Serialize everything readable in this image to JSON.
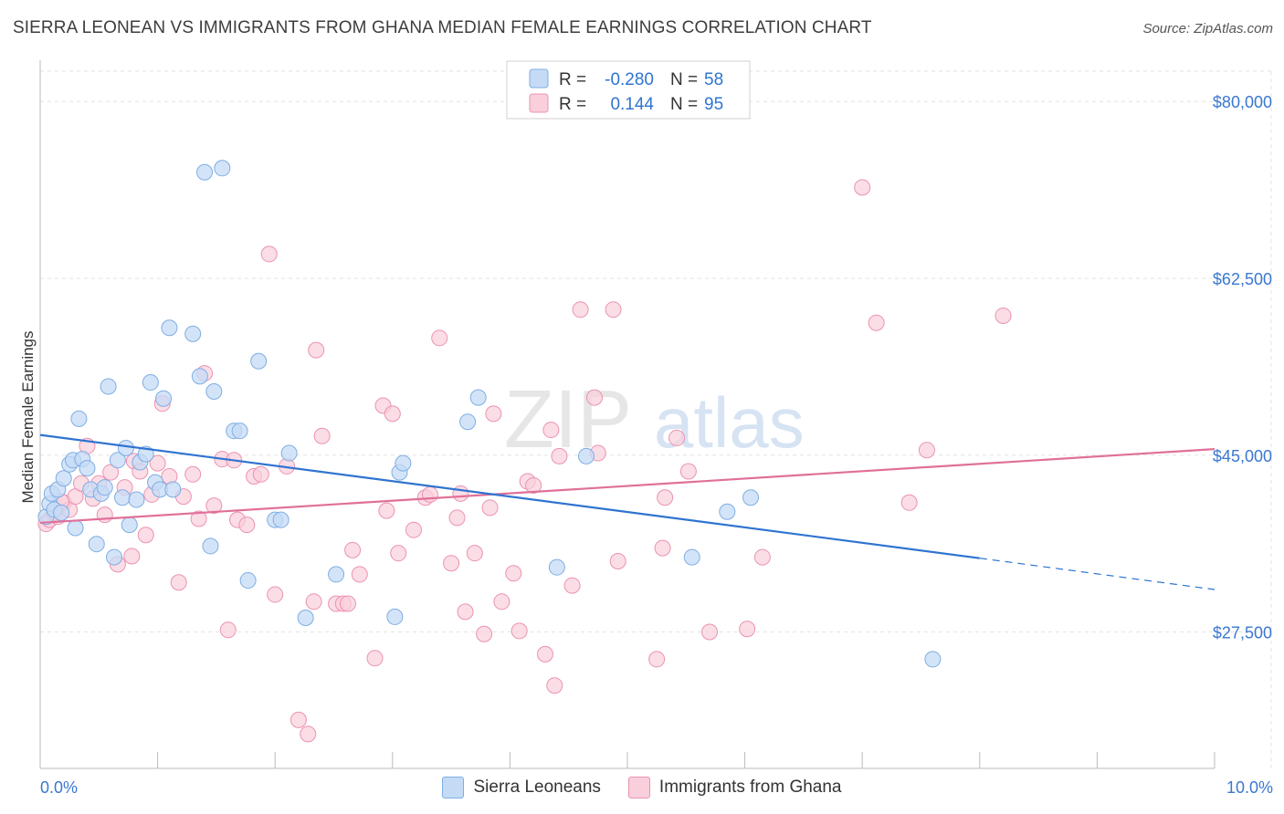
{
  "title": "SIERRA LEONEAN VS IMMIGRANTS FROM GHANA MEDIAN FEMALE EARNINGS CORRELATION CHART",
  "source": "Source: ZipAtlas.com",
  "colors": {
    "blue_fill": "#c5dbf5",
    "blue_stroke": "#7eaee3",
    "blue_line": "#2f74d0",
    "pink_fill": "#f9cfdc",
    "pink_stroke": "#eb93b0",
    "pink_line": "#e07099",
    "axis_label": "#3a78d0",
    "grid": "#e3e3e3"
  },
  "legend": {
    "row1": {
      "r_label": "R = ",
      "r_value": "-0.280",
      "n_label": "N = ",
      "n_value": "58"
    },
    "row2": {
      "r_label": "R = ",
      "r_value": "0.144",
      "n_label": "N = ",
      "n_value": "95"
    }
  },
  "bottom_legend": {
    "series1": "Sierra Leoneans",
    "series2": "Immigrants from Ghana"
  },
  "watermark": {
    "zip": "ZIP",
    "atlas": "atlas"
  },
  "chart_data": {
    "type": "scatter",
    "title": "SIERRA LEONEAN VS IMMIGRANTS FROM GHANA MEDIAN FEMALE EARNINGS CORRELATION CHART",
    "xlabel": "",
    "ylabel": "Median Female Earnings",
    "xlim": [
      0,
      10
    ],
    "ylim": [
      14000,
      83000
    ],
    "x_tick_labels": [
      "0.0%",
      "10.0%"
    ],
    "y_ticks": [
      27500,
      45000,
      62500,
      80000
    ],
    "y_tick_labels": [
      "$27,500",
      "$45,000",
      "$62,500",
      "$80,000"
    ],
    "series": [
      {
        "name": "Sierra Leoneans",
        "r": -0.28,
        "n": 58,
        "trend": {
          "x0": 0,
          "y0": 47000,
          "x1": 8.0,
          "y1": 34800,
          "dash_to_x": 10,
          "dash_to_y": 31700
        },
        "points": [
          [
            0.05,
            38900
          ],
          [
            0.08,
            40200
          ],
          [
            0.1,
            41200
          ],
          [
            0.12,
            39600
          ],
          [
            0.15,
            41600
          ],
          [
            0.18,
            39300
          ],
          [
            0.2,
            42700
          ],
          [
            0.25,
            44100
          ],
          [
            0.28,
            44500
          ],
          [
            0.3,
            37800
          ],
          [
            0.33,
            48600
          ],
          [
            0.36,
            44600
          ],
          [
            0.4,
            43700
          ],
          [
            0.43,
            41600
          ],
          [
            0.48,
            36200
          ],
          [
            0.52,
            41200
          ],
          [
            0.55,
            41800
          ],
          [
            0.58,
            51800
          ],
          [
            0.63,
            34900
          ],
          [
            0.66,
            44500
          ],
          [
            0.7,
            40800
          ],
          [
            0.73,
            45700
          ],
          [
            0.76,
            38100
          ],
          [
            0.82,
            40600
          ],
          [
            0.85,
            44300
          ],
          [
            0.9,
            45100
          ],
          [
            0.94,
            52200
          ],
          [
            0.98,
            42300
          ],
          [
            1.02,
            41600
          ],
          [
            1.05,
            50600
          ],
          [
            1.1,
            57600
          ],
          [
            1.13,
            41600
          ],
          [
            1.3,
            57000
          ],
          [
            1.36,
            52800
          ],
          [
            1.4,
            73000
          ],
          [
            1.45,
            36000
          ],
          [
            1.48,
            51300
          ],
          [
            1.55,
            73400
          ],
          [
            1.65,
            47400
          ],
          [
            1.7,
            47400
          ],
          [
            1.77,
            32600
          ],
          [
            1.86,
            54300
          ],
          [
            2.0,
            38600
          ],
          [
            2.05,
            38600
          ],
          [
            2.12,
            45200
          ],
          [
            2.26,
            28900
          ],
          [
            2.52,
            33200
          ],
          [
            3.02,
            29000
          ],
          [
            3.06,
            43300
          ],
          [
            3.09,
            44200
          ],
          [
            3.64,
            48300
          ],
          [
            3.73,
            50700
          ],
          [
            4.4,
            33900
          ],
          [
            4.65,
            44900
          ],
          [
            5.55,
            34900
          ],
          [
            5.85,
            39400
          ],
          [
            6.05,
            40800
          ],
          [
            7.6,
            24800
          ]
        ]
      },
      {
        "name": "Immigrants from Ghana",
        "r": 0.144,
        "n": 95,
        "trend": {
          "x0": 0,
          "y0": 38300,
          "x1": 10,
          "y1": 45600
        },
        "points": [
          [
            0.05,
            38200
          ],
          [
            0.08,
            38600
          ],
          [
            0.12,
            39300
          ],
          [
            0.15,
            38900
          ],
          [
            0.2,
            40300
          ],
          [
            0.25,
            39600
          ],
          [
            0.3,
            40900
          ],
          [
            0.35,
            42200
          ],
          [
            0.4,
            45900
          ],
          [
            0.45,
            40700
          ],
          [
            0.5,
            42200
          ],
          [
            0.55,
            39100
          ],
          [
            0.6,
            43300
          ],
          [
            0.66,
            34200
          ],
          [
            0.72,
            41800
          ],
          [
            0.78,
            35000
          ],
          [
            0.8,
            44400
          ],
          [
            0.85,
            43400
          ],
          [
            0.9,
            37100
          ],
          [
            0.95,
            41100
          ],
          [
            1.0,
            44200
          ],
          [
            1.04,
            50100
          ],
          [
            1.1,
            42900
          ],
          [
            1.18,
            32400
          ],
          [
            1.22,
            40900
          ],
          [
            1.3,
            43100
          ],
          [
            1.35,
            38700
          ],
          [
            1.4,
            53100
          ],
          [
            1.48,
            40000
          ],
          [
            1.55,
            44600
          ],
          [
            1.6,
            27700
          ],
          [
            1.68,
            38600
          ],
          [
            1.76,
            38100
          ],
          [
            1.82,
            42900
          ],
          [
            1.88,
            43100
          ],
          [
            1.95,
            64900
          ],
          [
            2.1,
            43900
          ],
          [
            2.2,
            18800
          ],
          [
            2.28,
            17400
          ],
          [
            2.33,
            30500
          ],
          [
            2.35,
            55400
          ],
          [
            2.4,
            46900
          ],
          [
            2.52,
            30300
          ],
          [
            2.58,
            30300
          ],
          [
            2.62,
            30300
          ],
          [
            2.66,
            35600
          ],
          [
            2.72,
            33200
          ],
          [
            2.85,
            24900
          ],
          [
            2.92,
            49900
          ],
          [
            2.95,
            39500
          ],
          [
            3.0,
            49100
          ],
          [
            3.05,
            35300
          ],
          [
            3.18,
            37600
          ],
          [
            3.28,
            40800
          ],
          [
            3.32,
            41100
          ],
          [
            3.4,
            56600
          ],
          [
            3.5,
            34300
          ],
          [
            3.55,
            38800
          ],
          [
            3.58,
            41200
          ],
          [
            3.62,
            29500
          ],
          [
            3.7,
            35300
          ],
          [
            3.78,
            27300
          ],
          [
            3.83,
            39800
          ],
          [
            3.86,
            49100
          ],
          [
            3.93,
            30500
          ],
          [
            4.03,
            33300
          ],
          [
            4.08,
            27600
          ],
          [
            4.15,
            42400
          ],
          [
            4.2,
            42000
          ],
          [
            4.3,
            25300
          ],
          [
            4.35,
            47500
          ],
          [
            4.38,
            22200
          ],
          [
            4.42,
            44900
          ],
          [
            4.53,
            32100
          ],
          [
            4.6,
            59400
          ],
          [
            4.72,
            50700
          ],
          [
            4.75,
            45200
          ],
          [
            4.88,
            59400
          ],
          [
            4.92,
            34500
          ],
          [
            5.25,
            24800
          ],
          [
            5.3,
            35800
          ],
          [
            5.32,
            40800
          ],
          [
            5.42,
            46700
          ],
          [
            5.52,
            43400
          ],
          [
            5.7,
            27500
          ],
          [
            6.02,
            27800
          ],
          [
            6.15,
            34900
          ],
          [
            7.0,
            71500
          ],
          [
            7.12,
            58100
          ],
          [
            7.4,
            40300
          ],
          [
            7.55,
            45500
          ],
          [
            8.2,
            58800
          ],
          [
            0.18,
            40400
          ],
          [
            1.65,
            44500
          ],
          [
            2.0,
            31200
          ]
        ]
      }
    ]
  }
}
